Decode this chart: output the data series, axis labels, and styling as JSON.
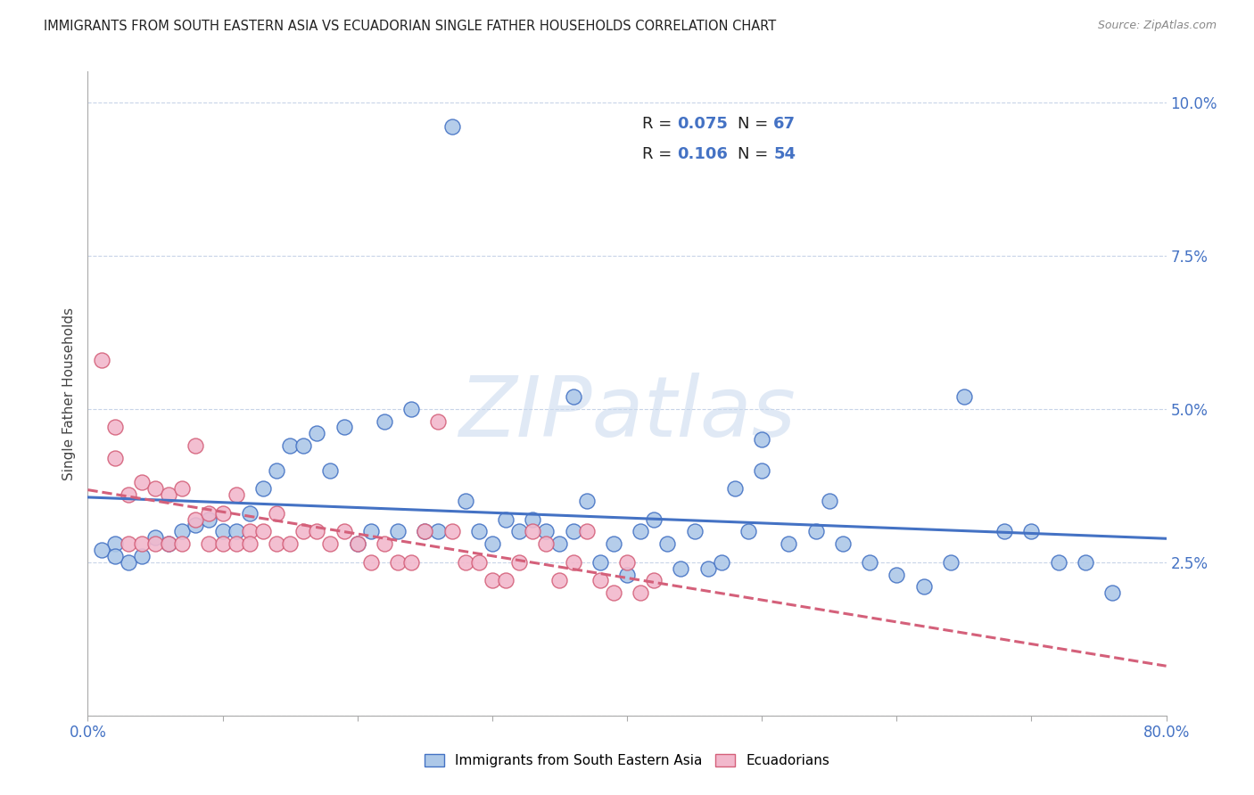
{
  "title": "IMMIGRANTS FROM SOUTH EASTERN ASIA VS ECUADORIAN SINGLE FATHER HOUSEHOLDS CORRELATION CHART",
  "source": "Source: ZipAtlas.com",
  "ylabel": "Single Father Households",
  "watermark": "ZIPatlas",
  "xlim": [
    0.0,
    0.8
  ],
  "ylim": [
    0.0,
    0.105
  ],
  "blue_R": 0.075,
  "blue_N": 67,
  "pink_R": 0.106,
  "pink_N": 54,
  "blue_color": "#adc8e8",
  "pink_color": "#f2b8cc",
  "blue_line_color": "#4472c4",
  "pink_line_color": "#d4607a",
  "background_color": "#ffffff",
  "grid_color": "#c8d4e8",
  "blue_scatter_x": [
    0.27,
    0.02,
    0.01,
    0.05,
    0.03,
    0.02,
    0.04,
    0.06,
    0.07,
    0.08,
    0.09,
    0.1,
    0.11,
    0.12,
    0.13,
    0.14,
    0.15,
    0.16,
    0.17,
    0.18,
    0.19,
    0.2,
    0.21,
    0.22,
    0.23,
    0.24,
    0.25,
    0.26,
    0.28,
    0.29,
    0.3,
    0.31,
    0.32,
    0.33,
    0.34,
    0.35,
    0.36,
    0.37,
    0.38,
    0.39,
    0.4,
    0.41,
    0.42,
    0.43,
    0.44,
    0.45,
    0.46,
    0.47,
    0.48,
    0.49,
    0.5,
    0.52,
    0.54,
    0.56,
    0.58,
    0.6,
    0.62,
    0.64,
    0.68,
    0.7,
    0.72,
    0.74,
    0.76,
    0.55,
    0.36,
    0.5,
    0.65
  ],
  "blue_scatter_y": [
    0.096,
    0.028,
    0.027,
    0.029,
    0.025,
    0.026,
    0.026,
    0.028,
    0.03,
    0.031,
    0.032,
    0.03,
    0.03,
    0.033,
    0.037,
    0.04,
    0.044,
    0.044,
    0.046,
    0.04,
    0.047,
    0.028,
    0.03,
    0.048,
    0.03,
    0.05,
    0.03,
    0.03,
    0.035,
    0.03,
    0.028,
    0.032,
    0.03,
    0.032,
    0.03,
    0.028,
    0.03,
    0.035,
    0.025,
    0.028,
    0.023,
    0.03,
    0.032,
    0.028,
    0.024,
    0.03,
    0.024,
    0.025,
    0.037,
    0.03,
    0.04,
    0.028,
    0.03,
    0.028,
    0.025,
    0.023,
    0.021,
    0.025,
    0.03,
    0.03,
    0.025,
    0.025,
    0.02,
    0.035,
    0.052,
    0.045,
    0.052
  ],
  "pink_scatter_x": [
    0.01,
    0.02,
    0.02,
    0.03,
    0.03,
    0.04,
    0.04,
    0.05,
    0.05,
    0.06,
    0.06,
    0.07,
    0.07,
    0.08,
    0.08,
    0.09,
    0.09,
    0.1,
    0.1,
    0.11,
    0.11,
    0.12,
    0.12,
    0.13,
    0.14,
    0.14,
    0.15,
    0.16,
    0.17,
    0.18,
    0.19,
    0.2,
    0.21,
    0.22,
    0.23,
    0.24,
    0.25,
    0.26,
    0.27,
    0.28,
    0.29,
    0.3,
    0.31,
    0.32,
    0.33,
    0.34,
    0.35,
    0.36,
    0.37,
    0.38,
    0.39,
    0.4,
    0.41,
    0.42
  ],
  "pink_scatter_y": [
    0.058,
    0.047,
    0.042,
    0.036,
    0.028,
    0.038,
    0.028,
    0.037,
    0.028,
    0.036,
    0.028,
    0.037,
    0.028,
    0.032,
    0.044,
    0.033,
    0.028,
    0.033,
    0.028,
    0.036,
    0.028,
    0.03,
    0.028,
    0.03,
    0.033,
    0.028,
    0.028,
    0.03,
    0.03,
    0.028,
    0.03,
    0.028,
    0.025,
    0.028,
    0.025,
    0.025,
    0.03,
    0.048,
    0.03,
    0.025,
    0.025,
    0.022,
    0.022,
    0.025,
    0.03,
    0.028,
    0.022,
    0.025,
    0.03,
    0.022,
    0.02,
    0.025,
    0.02,
    0.022
  ]
}
